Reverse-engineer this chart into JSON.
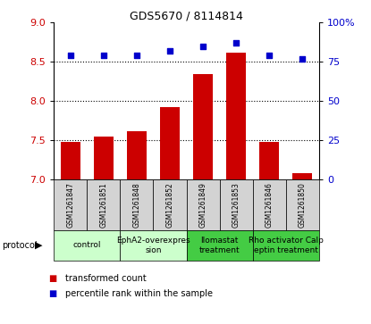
{
  "title": "GDS5670 / 8114814",
  "samples": [
    "GSM1261847",
    "GSM1261851",
    "GSM1261848",
    "GSM1261852",
    "GSM1261849",
    "GSM1261853",
    "GSM1261846",
    "GSM1261850"
  ],
  "bar_values": [
    7.48,
    7.55,
    7.62,
    7.93,
    8.35,
    8.62,
    7.48,
    7.08
  ],
  "scatter_values": [
    79,
    79,
    79,
    82,
    85,
    87,
    79,
    77
  ],
  "bar_color": "#cc0000",
  "scatter_color": "#0000cc",
  "ylim_left": [
    7.0,
    9.0
  ],
  "ylim_right": [
    0,
    100
  ],
  "yticks_left": [
    7.0,
    7.5,
    8.0,
    8.5,
    9.0
  ],
  "yticks_right": [
    0,
    25,
    50,
    75,
    100
  ],
  "ytick_labels_right": [
    "0",
    "25",
    "50",
    "75",
    "100%"
  ],
  "dotted_lines": [
    7.5,
    8.0,
    8.5
  ],
  "protocols": [
    {
      "label": "control",
      "span": [
        0,
        2
      ],
      "color": "#ccffcc"
    },
    {
      "label": "EphA2-overexpres\nsion",
      "span": [
        2,
        4
      ],
      "color": "#ccffcc"
    },
    {
      "label": "Ilomastat\ntreatment",
      "span": [
        4,
        6
      ],
      "color": "#44cc44"
    },
    {
      "label": "Rho activator Calp\neptin treatment",
      "span": [
        6,
        8
      ],
      "color": "#44cc44"
    }
  ],
  "legend_items": [
    {
      "color": "#cc0000",
      "label": "transformed count"
    },
    {
      "color": "#0000cc",
      "label": "percentile rank within the sample"
    }
  ],
  "protocol_label": "protocol",
  "bar_bottom": 7.0,
  "cell_bg_color": "#d3d3d3",
  "bar_width": 0.6
}
